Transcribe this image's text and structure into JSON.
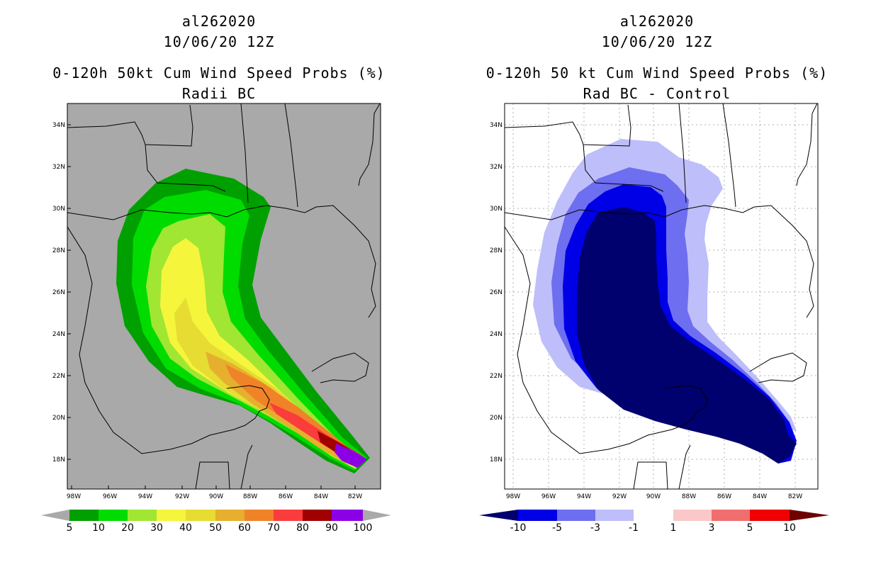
{
  "left": {
    "storm_id": "al262020",
    "date": "10/06/20 12Z",
    "product": "0-120h 50kt Cum Wind Speed Probs (%)",
    "subtitle": "Radii BC",
    "background": "#a9a9a9",
    "lat_labels": [
      "34N",
      "32N",
      "30N",
      "28N",
      "26N",
      "24N",
      "22N",
      "20N",
      "18N"
    ],
    "lon_labels": [
      "98W",
      "96W",
      "94W",
      "92W",
      "90W",
      "88W",
      "86W",
      "84W",
      "82W"
    ],
    "colorbar": {
      "colors": [
        "#00a000",
        "#00dc00",
        "#a0e632",
        "#f5f53c",
        "#e6dc32",
        "#e6af2d",
        "#f08228",
        "#fa3c3c",
        "#a00000",
        "#8c00e6"
      ],
      "labels": [
        "5",
        "10",
        "20",
        "30",
        "40",
        "50",
        "60",
        "70",
        "80",
        "90",
        "100"
      ],
      "ends": [
        "#a9a9a9",
        "#a9a9a9"
      ]
    }
  },
  "right": {
    "storm_id": "al262020",
    "date": "10/06/20 12Z",
    "product": "0-120h 50 kt Cum Wind Speed Probs (%)",
    "subtitle": "Rad BC - Control",
    "background": "#ffffff",
    "lat_labels": [
      "34N",
      "32N",
      "30N",
      "28N",
      "26N",
      "24N",
      "22N",
      "20N",
      "18N"
    ],
    "lon_labels": [
      "98W",
      "96W",
      "94W",
      "92W",
      "90W",
      "88W",
      "86W",
      "84W",
      "82W"
    ],
    "colorbar": {
      "colors": [
        "#0000e6",
        "#6e6ef0",
        "#bebefa",
        "#ffffff",
        "#fac8c8",
        "#f06e6e",
        "#f00000"
      ],
      "labels": [
        "-10",
        "-5",
        "-3",
        "-1",
        "1",
        "3",
        "5",
        "10"
      ],
      "ends": [
        "#00006e",
        "#6e0000"
      ]
    }
  }
}
